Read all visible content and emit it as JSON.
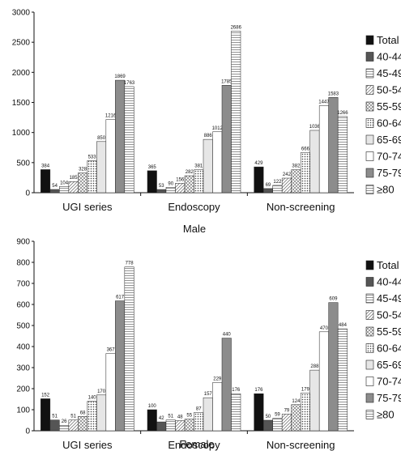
{
  "chart_data": [
    {
      "type": "bar",
      "title": "Male",
      "categories": [
        "UGI series",
        "Endoscopy",
        "Non-screening"
      ],
      "ylim": [
        0,
        3000
      ],
      "yticks": [
        "0",
        "500",
        "1000",
        "1500",
        "2000",
        "2500",
        "3000"
      ],
      "grid": false,
      "legend_position": "right",
      "series": [
        {
          "name": "Total",
          "values": [
            384,
            365,
            429
          ]
        },
        {
          "name": "40-44",
          "values": [
            54,
            53,
            69
          ]
        },
        {
          "name": "45-49",
          "values": [
            104,
            90,
            122
          ]
        },
        {
          "name": "50-54",
          "values": [
            185,
            156,
            242
          ]
        },
        {
          "name": "55-59",
          "values": [
            328,
            282,
            382
          ]
        },
        {
          "name": "60-64",
          "values": [
            533,
            381,
            666
          ]
        },
        {
          "name": "65-69",
          "values": [
            850,
            886,
            1036
          ]
        },
        {
          "name": "70-74",
          "values": [
            1216,
            1012,
            1447
          ]
        },
        {
          "name": "75-79",
          "values": [
            1869,
            1785,
            1583
          ]
        },
        {
          "name": "≥80",
          "values": [
            1763,
            2686,
            1266
          ]
        }
      ]
    },
    {
      "type": "bar",
      "title": "Female",
      "categories": [
        "UGI series",
        "Endoscopy",
        "Non-screening"
      ],
      "ylim": [
        0,
        900
      ],
      "yticks": [
        "0",
        "100",
        "200",
        "300",
        "400",
        "500",
        "600",
        "700",
        "800",
        "900"
      ],
      "grid": false,
      "legend_position": "right",
      "series": [
        {
          "name": "Total",
          "values": [
            152,
            100,
            176
          ]
        },
        {
          "name": "40-44",
          "values": [
            51,
            42,
            50
          ]
        },
        {
          "name": "45-49",
          "values": [
            26,
            51,
            59
          ]
        },
        {
          "name": "50-54",
          "values": [
            51,
            48,
            79
          ]
        },
        {
          "name": "55-59",
          "values": [
            68,
            55,
            124
          ]
        },
        {
          "name": "60-64",
          "values": [
            140,
            87,
            179
          ]
        },
        {
          "name": "65-69",
          "values": [
            170,
            157,
            288
          ]
        },
        {
          "name": "70-74",
          "values": [
            367,
            229,
            470
          ]
        },
        {
          "name": "75-79",
          "values": [
            617,
            440,
            609
          ]
        },
        {
          "name": "≥80",
          "values": [
            778,
            176,
            484
          ]
        }
      ]
    }
  ],
  "series_styles": {
    "Total": {
      "fill": "#111111",
      "pattern": "solid"
    },
    "40-44": {
      "fill": "#555555",
      "pattern": "solid"
    },
    "45-49": {
      "fill": "#f2f2f2",
      "pattern": "hlines"
    },
    "50-54": {
      "fill": "#ffffff",
      "pattern": "diag"
    },
    "55-59": {
      "fill": "#ffffff",
      "pattern": "cross"
    },
    "60-64": {
      "fill": "#ffffff",
      "pattern": "dots"
    },
    "65-69": {
      "fill": "#e6e6e6",
      "pattern": "solid"
    },
    "70-74": {
      "fill": "#ffffff",
      "pattern": "solid"
    },
    "75-79": {
      "fill": "#8c8c8c",
      "pattern": "solid"
    },
    "≥80": {
      "fill": "#ffffff",
      "pattern": "hlines"
    }
  }
}
